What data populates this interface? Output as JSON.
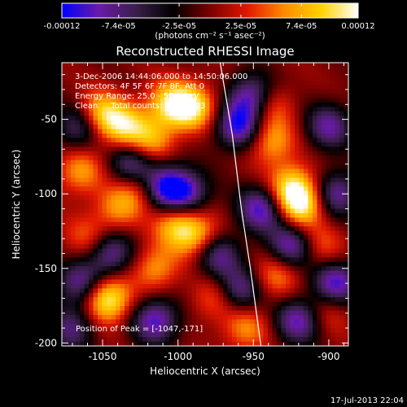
{
  "chart_data": {
    "type": "heatmap",
    "title": "Reconstructed RHESSI Image",
    "xlabel": "Heliocentric X (arcsec)",
    "ylabel": "Heliocentric Y (arcsec)",
    "xlim": [
      -1077,
      -887
    ],
    "ylim": [
      -202,
      -12
    ],
    "x_ticks": [
      -1050,
      -1000,
      -950,
      -900
    ],
    "x_tick_labels": [
      "-1050",
      "-1000",
      "-950",
      "-900"
    ],
    "y_ticks": [
      -50,
      -100,
      -150,
      -200
    ],
    "y_tick_labels": [
      "-50",
      "-100",
      "-150",
      "-200"
    ],
    "colorbar": {
      "range": [
        -0.00012,
        0.00012
      ],
      "tick_values": [
        -0.00012,
        -7.4e-05,
        -2.5e-05,
        2.5e-05,
        7.4e-05,
        0.00012
      ],
      "tick_labels": [
        "-0.00012",
        "-7.4e-05",
        "-2.5e-05",
        "2.5e-05",
        "7.4e-05",
        "0.00012"
      ],
      "unit_label": "(photons cm⁻² s⁻¹ asec⁻²)",
      "colors": [
        "#0000ff",
        "#6a1aa8",
        "#3a1f4a",
        "#000000",
        "#7a0000",
        "#e01800",
        "#ff8a00",
        "#ffd200",
        "#ffffff"
      ]
    },
    "annotations": [
      "3-Dec-2006 14:44:06.000 to 14:50:06.000",
      "Detectors: 4F 5F 6F 7F 8F, Att 0",
      "Energy Range: 25.0 - 50.0 keV",
      "Clean     Total counts: 8.59E+03"
    ],
    "peak_label": "Position of Peak = [-1047,-171]",
    "peak": [
      -1047,
      -171
    ],
    "limb_curve": [
      [
        -972,
        -12
      ],
      [
        -964,
        -60
      ],
      [
        -958,
        -110
      ],
      [
        -952,
        -150
      ],
      [
        -945,
        -202
      ]
    ],
    "features": [
      {
        "x": -1052,
        "y": -47,
        "v": 0.8
      },
      {
        "x": -1047,
        "y": -171,
        "v": 1.0
      },
      {
        "x": -1035,
        "y": -55,
        "v": 0.7
      },
      {
        "x": -1018,
        "y": -65,
        "v": 0.6
      },
      {
        "x": -1005,
        "y": -40,
        "v": 0.75
      },
      {
        "x": -990,
        "y": -42,
        "v": 0.8
      },
      {
        "x": -1000,
        "y": -120,
        "v": 0.75
      },
      {
        "x": -985,
        "y": -130,
        "v": 0.7
      },
      {
        "x": -1025,
        "y": -95,
        "v": 0.55
      },
      {
        "x": -1040,
        "y": -110,
        "v": 0.5
      },
      {
        "x": -1065,
        "y": -85,
        "v": 0.55
      },
      {
        "x": -940,
        "y": -40,
        "v": 0.55
      },
      {
        "x": -938,
        "y": -65,
        "v": 0.6
      },
      {
        "x": -925,
        "y": -95,
        "v": 0.7
      },
      {
        "x": -918,
        "y": -107,
        "v": 0.9
      },
      {
        "x": -935,
        "y": -155,
        "v": 0.5
      },
      {
        "x": -975,
        "y": -170,
        "v": 0.45
      },
      {
        "x": -955,
        "y": -190,
        "v": 0.5
      },
      {
        "x": -905,
        "y": -135,
        "v": 0.4
      },
      {
        "x": -1060,
        "y": -130,
        "v": 0.4
      },
      {
        "x": -1015,
        "y": -150,
        "v": 0.55
      },
      {
        "x": -900,
        "y": -178,
        "v": 0.35
      },
      {
        "x": -1065,
        "y": -55,
        "v": -0.7
      },
      {
        "x": -1030,
        "y": -80,
        "v": -0.8
      },
      {
        "x": -1010,
        "y": -95,
        "v": -0.9
      },
      {
        "x": -995,
        "y": -100,
        "v": -0.85
      },
      {
        "x": -960,
        "y": -55,
        "v": -0.9
      },
      {
        "x": -950,
        "y": -35,
        "v": -0.95
      },
      {
        "x": -945,
        "y": -110,
        "v": -0.85
      },
      {
        "x": -925,
        "y": -135,
        "v": -0.8
      },
      {
        "x": -900,
        "y": -55,
        "v": -0.7
      },
      {
        "x": -895,
        "y": -100,
        "v": -0.75
      },
      {
        "x": -895,
        "y": -160,
        "v": -0.9
      },
      {
        "x": -1045,
        "y": -140,
        "v": -0.75
      },
      {
        "x": -1065,
        "y": -160,
        "v": -0.7
      },
      {
        "x": -1015,
        "y": -185,
        "v": -0.85
      },
      {
        "x": -975,
        "y": -140,
        "v": -0.8
      },
      {
        "x": -960,
        "y": -165,
        "v": -0.75
      },
      {
        "x": -920,
        "y": -185,
        "v": -0.8
      },
      {
        "x": -1070,
        "y": -190,
        "v": -0.6
      }
    ]
  },
  "footer": {
    "timestamp": "17-Jul-2013 22:04"
  }
}
